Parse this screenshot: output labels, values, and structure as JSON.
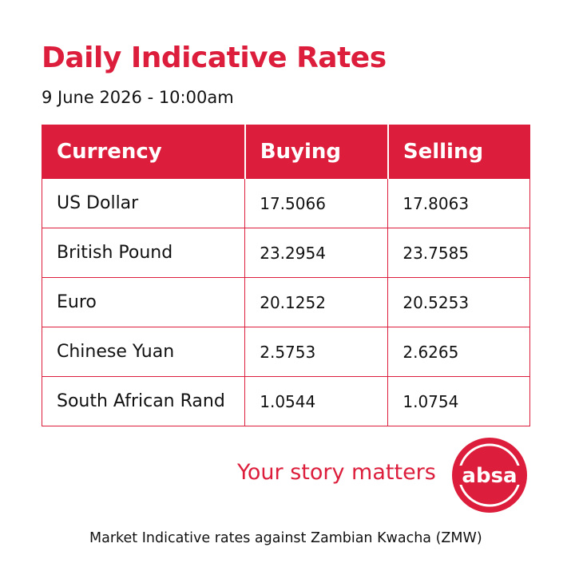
{
  "header": {
    "title": "Daily Indicative Rates",
    "date": "9 June 2026 - 10:00am"
  },
  "table": {
    "columns": [
      "Currency",
      "Buying",
      "Selling"
    ],
    "rows": [
      [
        "US Dollar",
        "17.5066",
        "17.8063"
      ],
      [
        "British Pound",
        "23.2954",
        "23.7585"
      ],
      [
        "Euro",
        "20.1252",
        "20.5253"
      ],
      [
        "Chinese Yuan",
        "2.5753",
        "2.6265"
      ],
      [
        "South African Rand",
        "1.0544",
        "1.0754"
      ]
    ]
  },
  "brand": {
    "tagline": "Your story matters",
    "logo": "absa"
  },
  "footer": "Market Indicative rates against Zambian Kwacha (ZMW)"
}
